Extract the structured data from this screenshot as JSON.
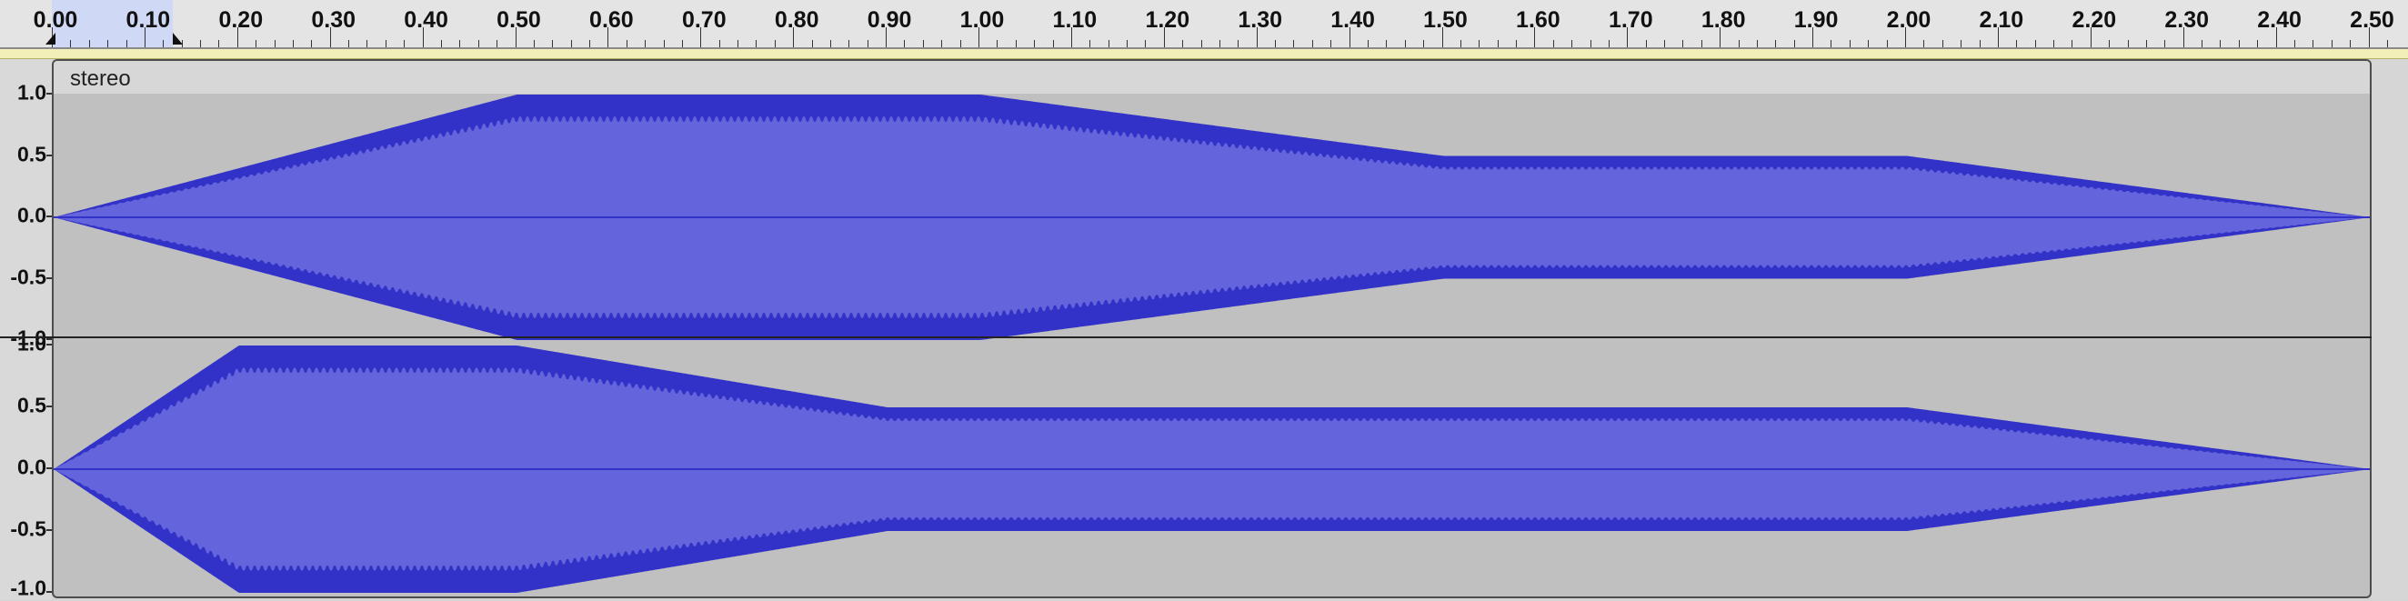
{
  "ruler": {
    "labels": [
      "0.00",
      "0.10",
      "0.20",
      "0.30",
      "0.40",
      "0.50",
      "0.60",
      "0.70",
      "0.80",
      "0.90",
      "1.00",
      "1.10",
      "1.20",
      "1.30",
      "1.40",
      "1.50",
      "1.60",
      "1.70",
      "1.80",
      "1.90",
      "2.00",
      "2.10",
      "2.20",
      "2.30",
      "2.40",
      "2.50"
    ],
    "unit": "seconds",
    "selection": [
      0.0,
      0.13
    ]
  },
  "track": {
    "name": "stereo",
    "channels": [
      {
        "id": "left",
        "scale_labels": [
          "1.0",
          "0.5",
          "0.0",
          "-0.5",
          "-1.0"
        ],
        "envelope": [
          [
            0.0,
            0.0
          ],
          [
            0.5,
            1.0
          ],
          [
            1.0,
            1.0
          ],
          [
            1.5,
            0.5
          ],
          [
            2.0,
            0.5
          ],
          [
            2.5,
            0.0
          ]
        ]
      },
      {
        "id": "right",
        "scale_labels": [
          "1.0",
          "0.5",
          "0.0",
          "-0.5",
          "-1.0"
        ],
        "envelope": [
          [
            0.0,
            0.0
          ],
          [
            0.2,
            1.0
          ],
          [
            0.5,
            1.0
          ],
          [
            0.9,
            0.5
          ],
          [
            2.0,
            0.5
          ],
          [
            2.5,
            0.0
          ]
        ]
      }
    ]
  },
  "colors": {
    "wave_peak": "#3232c8",
    "wave_rms": "#6464dc",
    "background": "#c0c0c0",
    "selection": "#cfd8f5"
  }
}
